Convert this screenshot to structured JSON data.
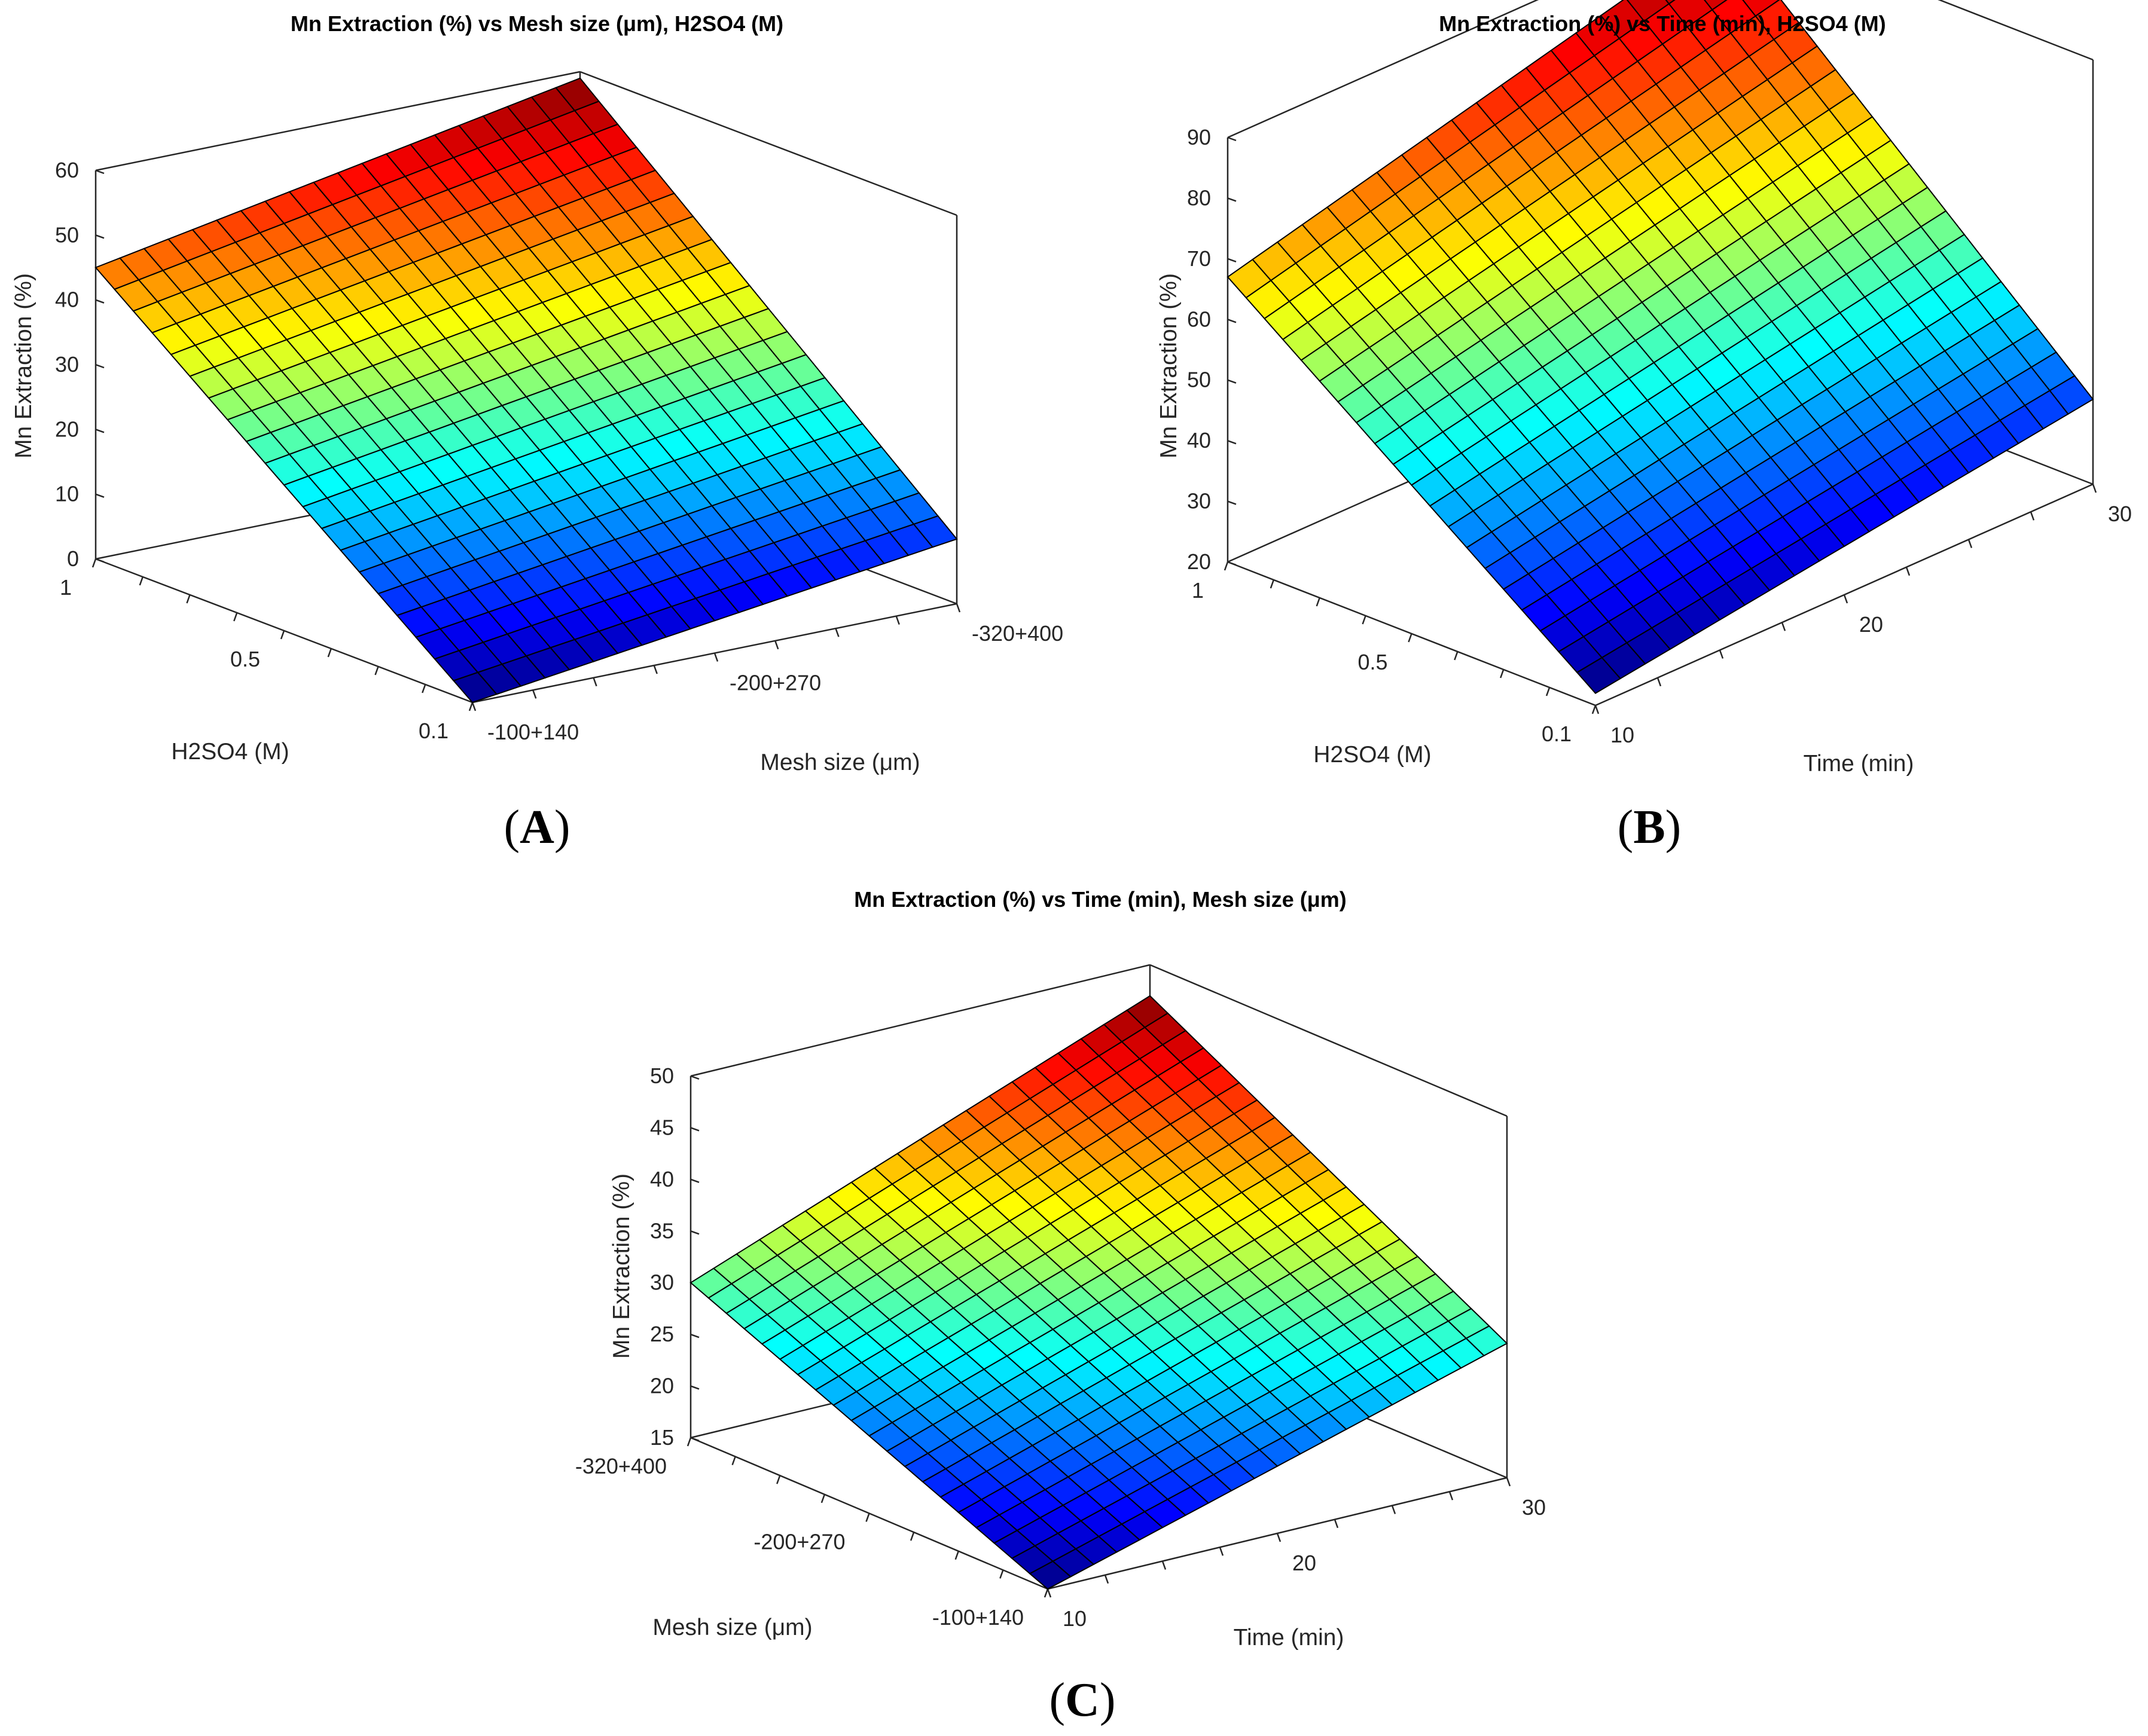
{
  "figure_labels": {
    "A": {
      "open": "(",
      "letter": "A",
      "close": ")"
    },
    "B": {
      "open": "(",
      "letter": "B",
      "close": ")"
    },
    "C": {
      "open": "(",
      "letter": "C",
      "close": ")"
    }
  },
  "chart_data": [
    {
      "id": "A",
      "type": "surface",
      "title": "Mn Extraction (%) vs Mesh size (μm), H2SO4 (M)",
      "zlabel": "Mn Extraction (%)",
      "xlabel": "H2SO4 (M)",
      "ylabel": "Mesh size (μm)",
      "x_ticks": [
        "1",
        "0.5",
        "0.1"
      ],
      "y_ticks": [
        "-100+140",
        "-200+270",
        "-320+400"
      ],
      "z_ticks": [
        "0",
        "10",
        "20",
        "30",
        "40",
        "50",
        "60"
      ],
      "zlim": [
        0,
        60
      ],
      "grid": 20,
      "corner_values": {
        "z00": 0,
        "z10": 45,
        "z01": 10,
        "z11": 59
      },
      "colormap": "jet"
    },
    {
      "id": "B",
      "type": "surface",
      "title": "Mn Extraction (%) vs Time (min), H2SO4 (M)",
      "zlabel": "Mn Extraction (%)",
      "xlabel": "H2SO4 (M)",
      "ylabel": "Time (min)",
      "x_ticks": [
        "1",
        "0.5",
        "0.1"
      ],
      "y_ticks": [
        "10",
        "20",
        "30"
      ],
      "z_ticks": [
        "20",
        "30",
        "40",
        "50",
        "60",
        "70",
        "80",
        "90"
      ],
      "zlim": [
        20,
        90
      ],
      "grid": 20,
      "corner_values": {
        "z00": 22,
        "z10": 67,
        "z01": 34,
        "z11": 88
      },
      "colormap": "jet"
    },
    {
      "id": "C",
      "type": "surface",
      "title": "Mn Extraction (%) vs Time (min), Mesh size (μm)",
      "zlabel": "Mn Extraction (%)",
      "xlabel": "Mesh size (μm)",
      "ylabel": "Time (min)",
      "x_ticks": [
        "-320+400",
        "-200+270",
        "-100+140"
      ],
      "y_ticks": [
        "10",
        "20",
        "30"
      ],
      "z_ticks": [
        "15",
        "20",
        "25",
        "30",
        "35",
        "40",
        "45",
        "50"
      ],
      "zlim": [
        15,
        50
      ],
      "grid": 20,
      "corner_values": {
        "z00": 15,
        "z10": 30,
        "z01": 28,
        "z11": 47
      },
      "colormap": "jet"
    }
  ]
}
